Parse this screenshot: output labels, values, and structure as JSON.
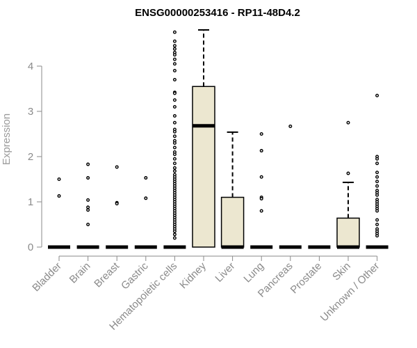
{
  "chart_data": {
    "type": "box",
    "title": "ENSG00000253416 - RP11-48D4.2",
    "xlabel": "",
    "ylabel": "Expression",
    "ylim": [
      0,
      4.8
    ],
    "yticks": [
      0,
      1,
      2,
      3,
      4
    ],
    "grid": false,
    "box_fill": "#ece7d0",
    "box_stroke": "#000000",
    "axis_color": "#8a8a8a",
    "categories": [
      "Bladder",
      "Brain",
      "Breast",
      "Gastric",
      "Hematopoietic cells",
      "Kidney",
      "Liver",
      "Lung",
      "Pancreas",
      "Prostate",
      "Skin",
      "Unknown / Other"
    ],
    "boxes": [
      {
        "category": "Bladder",
        "q1": 0,
        "median": 0,
        "q3": 0,
        "whisker_low": 0,
        "whisker_high": 0,
        "outliers": [
          1.5,
          1.13
        ]
      },
      {
        "category": "Brain",
        "q1": 0,
        "median": 0,
        "q3": 0,
        "whisker_low": 0,
        "whisker_high": 0,
        "outliers": [
          1.83,
          1.53,
          1.04,
          0.88,
          0.82,
          0.5
        ]
      },
      {
        "category": "Breast",
        "q1": 0,
        "median": 0,
        "q3": 0,
        "whisker_low": 0,
        "whisker_high": 0,
        "outliers": [
          1.77,
          0.98,
          0.96
        ]
      },
      {
        "category": "Gastric",
        "q1": 0,
        "median": 0,
        "q3": 0,
        "whisker_low": 0,
        "whisker_high": 0,
        "outliers": [
          1.53,
          1.08
        ]
      },
      {
        "category": "Hematopoietic cells",
        "q1": 0,
        "median": 0,
        "q3": 0,
        "whisker_low": 0,
        "whisker_high": 0,
        "outliers": [
          4.75,
          4.55,
          4.45,
          4.38,
          4.3,
          4.25,
          4.15,
          4.05,
          3.9,
          3.7,
          3.42,
          3.4,
          3.25,
          3.1,
          2.9,
          2.75,
          2.6,
          2.55,
          2.45,
          2.35,
          2.3,
          2.2,
          2.1,
          2.05,
          1.95,
          1.85,
          1.75,
          1.68,
          1.6,
          1.55,
          1.5,
          1.45,
          1.4,
          1.35,
          1.3,
          1.25,
          1.2,
          1.15,
          1.1,
          1.05,
          1.0,
          0.95,
          0.9,
          0.85,
          0.8,
          0.75,
          0.7,
          0.65,
          0.6,
          0.55,
          0.5,
          0.45,
          0.4,
          0.35,
          0.28,
          0.2
        ]
      },
      {
        "category": "Kidney",
        "q1": 0,
        "median": 2.68,
        "q3": 3.55,
        "whisker_low": 0,
        "whisker_high": 4.8,
        "outliers": []
      },
      {
        "category": "Liver",
        "q1": 0,
        "median": 0,
        "q3": 1.1,
        "whisker_low": 0,
        "whisker_high": 2.54,
        "outliers": []
      },
      {
        "category": "Lung",
        "q1": 0,
        "median": 0,
        "q3": 0,
        "whisker_low": 0,
        "whisker_high": 0,
        "outliers": [
          2.5,
          2.13,
          1.55,
          1.1,
          1.07,
          0.8
        ]
      },
      {
        "category": "Pancreas",
        "q1": 0,
        "median": 0,
        "q3": 0,
        "whisker_low": 0,
        "whisker_high": 0,
        "outliers": [
          2.67
        ]
      },
      {
        "category": "Prostate",
        "q1": 0,
        "median": 0,
        "q3": 0,
        "whisker_low": 0,
        "whisker_high": 0,
        "outliers": []
      },
      {
        "category": "Skin",
        "q1": 0,
        "median": 0,
        "q3": 0.64,
        "whisker_low": 0,
        "whisker_high": 1.43,
        "outliers": [
          2.75,
          1.63
        ]
      },
      {
        "category": "Unknown / Other",
        "q1": 0,
        "median": 0,
        "q3": 0,
        "whisker_low": 0,
        "whisker_high": 0,
        "outliers": [
          3.35,
          2.0,
          1.95,
          1.85,
          1.65,
          1.55,
          1.45,
          1.35,
          1.25,
          1.2,
          1.15,
          1.05,
          1.0,
          0.95,
          0.9,
          0.85,
          0.8,
          0.6,
          0.5,
          0.4,
          0.35,
          0.3,
          0.25
        ]
      }
    ]
  }
}
